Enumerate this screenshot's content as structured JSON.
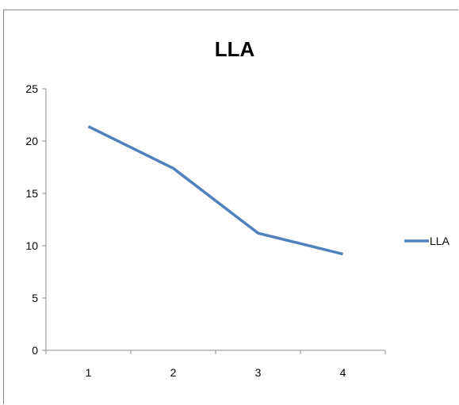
{
  "chart_data": {
    "type": "line",
    "title": "LLA",
    "xlabel": "",
    "ylabel": "",
    "categories": [
      "1",
      "2",
      "3",
      "4"
    ],
    "series": [
      {
        "name": "LLA",
        "values": [
          21.4,
          17.4,
          11.2,
          9.2
        ],
        "color": "#4f81bd"
      }
    ],
    "ylim": [
      0,
      25
    ],
    "yticks": [
      "0",
      "5",
      "10",
      "15",
      "20",
      "25"
    ],
    "grid": false,
    "legend": "right"
  }
}
